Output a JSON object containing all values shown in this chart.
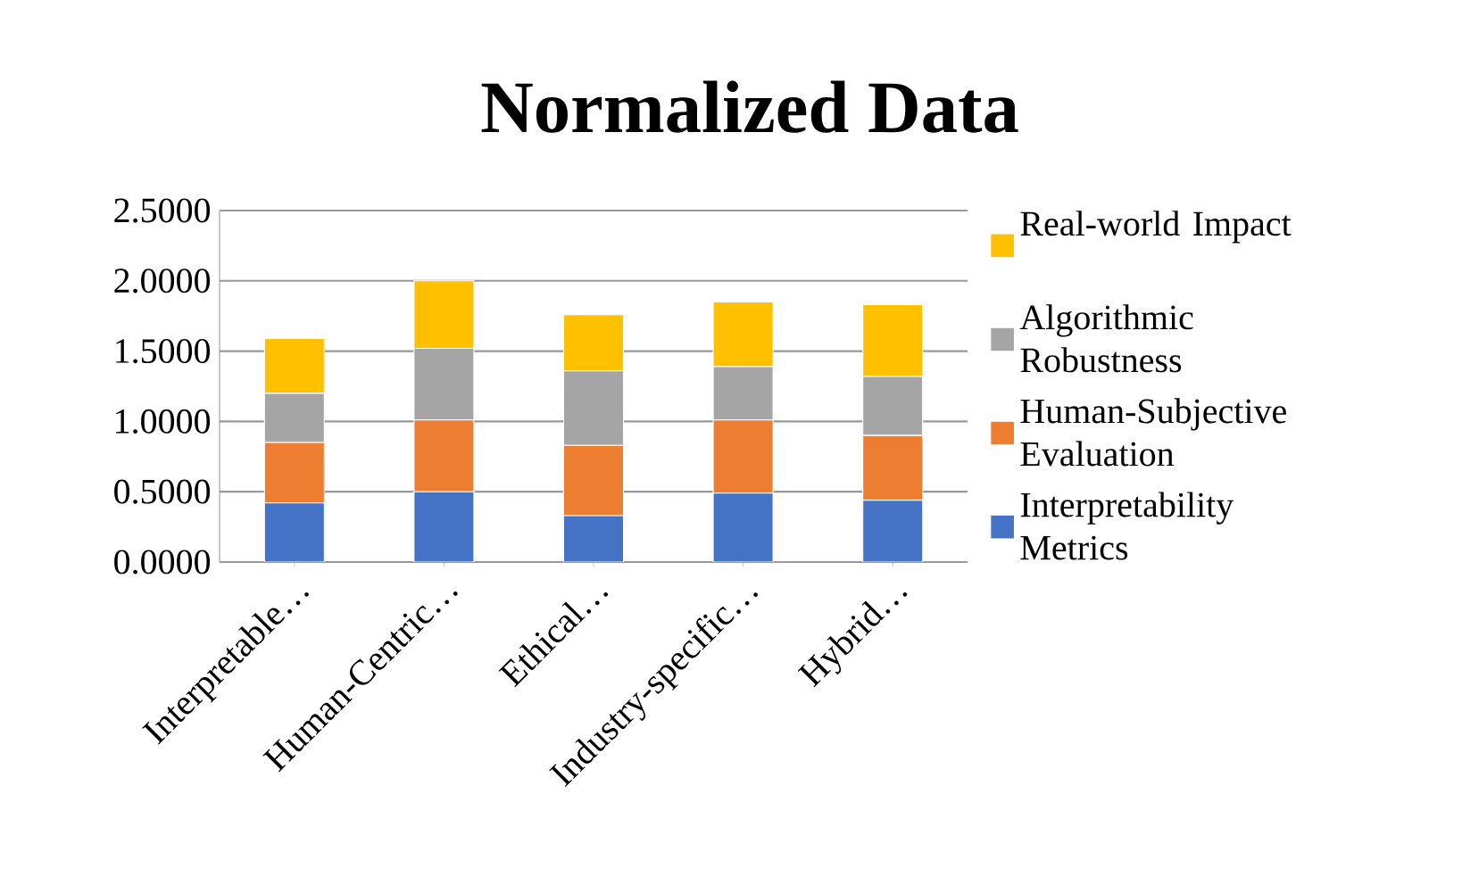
{
  "chart_data": {
    "type": "bar",
    "title": "Normalized Data",
    "stacked": true,
    "grid": "y",
    "legend": "right",
    "categories": [
      "Interpretable…",
      "Human-Centric…",
      "Ethical…",
      "Industry-specific…",
      "Hybrid…"
    ],
    "ylim": [
      0,
      2.5
    ],
    "yticks": [
      {
        "value": 0,
        "label": "0.0000"
      },
      {
        "value": 0.5,
        "label": "0.5000"
      },
      {
        "value": 1,
        "label": "1.0000"
      },
      {
        "value": 1.5,
        "label": "1.5000"
      },
      {
        "value": 2,
        "label": "2.0000"
      },
      {
        "value": 2.5,
        "label": "2.5000"
      }
    ],
    "series": [
      {
        "name": "Interpretability Metrics",
        "color": "#4472c4",
        "values": [
          0.42,
          0.5,
          0.33,
          0.49,
          0.44
        ]
      },
      {
        "name": "Human-Subjective Evaluation",
        "color": "#ed7d31",
        "values": [
          0.43,
          0.51,
          0.5,
          0.52,
          0.46
        ]
      },
      {
        "name": "Algorithmic Robustness",
        "color": "#a5a5a5",
        "values": [
          0.35,
          0.51,
          0.53,
          0.38,
          0.42
        ]
      },
      {
        "name": "Real-world Impact",
        "color": "#ffc000",
        "values": [
          0.39,
          0.48,
          0.4,
          0.46,
          0.51
        ]
      }
    ]
  }
}
